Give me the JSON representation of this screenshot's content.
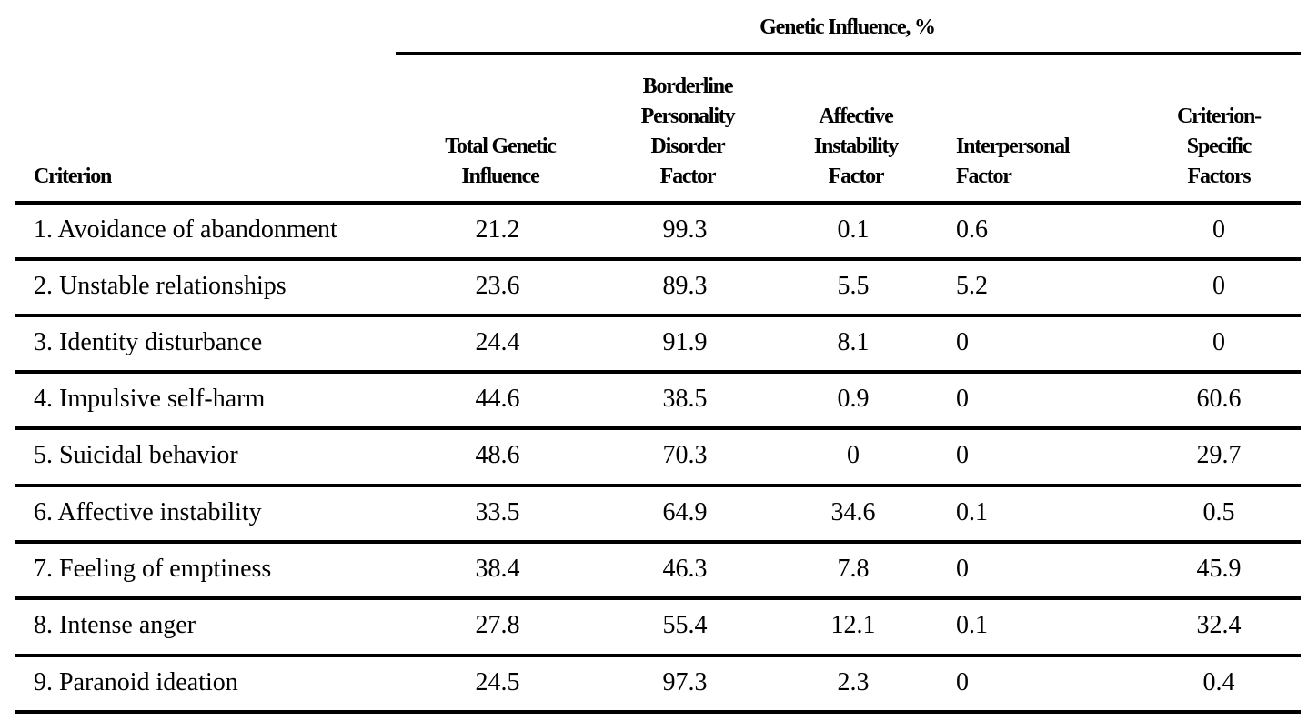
{
  "table": {
    "group_title": "Genetic Influence, %",
    "headers": {
      "criterion": "Criterion",
      "total": [
        "Total Genetic",
        "Influence"
      ],
      "bpd": [
        "Borderline",
        "Personality",
        "Disorder",
        "Factor"
      ],
      "affective": [
        "Affective",
        "Instability",
        "Factor"
      ],
      "interpersonal": [
        "Interpersonal",
        "Factor"
      ],
      "specific": [
        "Criterion-",
        "Specific",
        "Factors"
      ]
    },
    "rows": [
      {
        "criterion": "1. Avoidance of abandonment",
        "total": "21.2",
        "bpd": "99.3",
        "affective": "0.1",
        "interpersonal": "0.6",
        "specific": "0"
      },
      {
        "criterion": "2. Unstable relationships",
        "total": "23.6",
        "bpd": "89.3",
        "affective": "5.5",
        "interpersonal": "5.2",
        "specific": "0"
      },
      {
        "criterion": "3. Identity disturbance",
        "total": "24.4",
        "bpd": "91.9",
        "affective": "8.1",
        "interpersonal": "0",
        "specific": "0"
      },
      {
        "criterion": "4. Impulsive self-harm",
        "total": "44.6",
        "bpd": "38.5",
        "affective": "0.9",
        "interpersonal": "0",
        "specific": "60.6"
      },
      {
        "criterion": "5. Suicidal behavior",
        "total": "48.6",
        "bpd": "70.3",
        "affective": "0",
        "interpersonal": "0",
        "specific": "29.7"
      },
      {
        "criterion": "6. Affective instability",
        "total": "33.5",
        "bpd": "64.9",
        "affective": "34.6",
        "interpersonal": "0.1",
        "specific": "0.5"
      },
      {
        "criterion": "7. Feeling of emptiness",
        "total": "38.4",
        "bpd": "46.3",
        "affective": "7.8",
        "interpersonal": "0",
        "specific": "45.9"
      },
      {
        "criterion": "8. Intense anger",
        "total": "27.8",
        "bpd": "55.4",
        "affective": "12.1",
        "interpersonal": "0.1",
        "specific": "32.4"
      },
      {
        "criterion": "9. Paranoid ideation",
        "total": "24.5",
        "bpd": "97.3",
        "affective": "2.3",
        "interpersonal": "0",
        "specific": "0.4"
      }
    ]
  }
}
